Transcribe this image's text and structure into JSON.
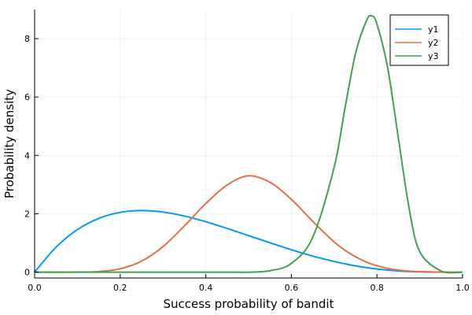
{
  "chart_data": {
    "type": "line",
    "title": "",
    "xlabel": "Success probability of bandit",
    "ylabel": "Probability density",
    "xlim": [
      0,
      1
    ],
    "ylim": [
      -0.2,
      9.0
    ],
    "xticks": [
      0.0,
      0.2,
      0.4,
      0.6,
      0.8,
      1.0
    ],
    "xtick_labels": [
      "0.0",
      "0.2",
      "0.4",
      "0.6",
      "0.8",
      "1.0"
    ],
    "yticks": [
      0,
      2,
      4,
      6,
      8
    ],
    "ytick_labels": [
      "0",
      "2",
      "4",
      "6",
      "8"
    ],
    "grid": true,
    "legend_position": "top-right",
    "x": [
      0,
      0.05,
      0.1,
      0.15,
      0.2,
      0.25,
      0.3,
      0.35,
      0.4,
      0.45,
      0.5,
      0.55,
      0.6,
      0.65,
      0.7,
      0.725,
      0.75,
      0.775,
      0.7875,
      0.8,
      0.825,
      0.85,
      0.875,
      0.9,
      0.95,
      1.0
    ],
    "series": [
      {
        "name": "y1",
        "color": "#009af9",
        "values": [
          0,
          0.855,
          1.458,
          1.843,
          2.048,
          2.109,
          2.058,
          1.923,
          1.728,
          1.497,
          1.25,
          1.007,
          0.768,
          0.551,
          0.365,
          0.286,
          0.216,
          0.156,
          0.13,
          0.108,
          0.069,
          0.041,
          0.021,
          0.009,
          0.001,
          0
        ]
      },
      {
        "name": "y2",
        "color": "#e26f46",
        "values": [
          0,
          0,
          0.001,
          0.021,
          0.115,
          0.376,
          0.874,
          1.582,
          2.352,
          2.986,
          3.3,
          3.077,
          2.494,
          1.737,
          1.033,
          0.753,
          0.525,
          0.349,
          0.278,
          0.221,
          0.129,
          0.07,
          0.035,
          0.015,
          0.001,
          0
        ]
      },
      {
        "name": "y3",
        "color": "#3da44d",
        "values": [
          0,
          0,
          0,
          0,
          0,
          0,
          0,
          0,
          0,
          0,
          0,
          0.05,
          0.3,
          1.2,
          3.6,
          5.6,
          7.5,
          8.6,
          8.78,
          8.5,
          7.0,
          4.6,
          2.2,
          0.7,
          0.04,
          0
        ]
      }
    ]
  }
}
